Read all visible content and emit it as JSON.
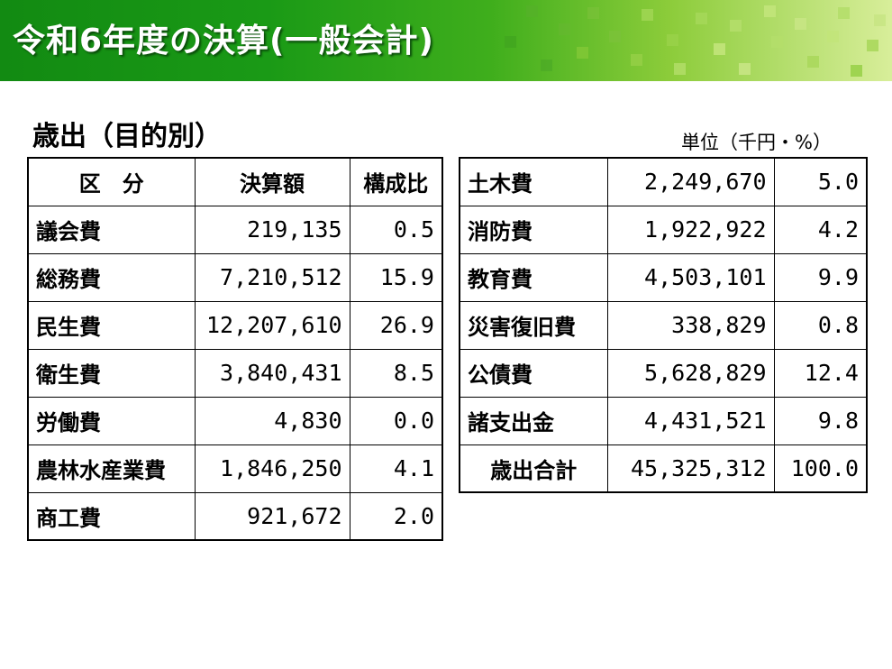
{
  "header": {
    "title": "令和6年度の決算(一般会計)"
  },
  "subtitle": "歳出（目的別）",
  "unit_label": "単位（千円・%）",
  "colors": {
    "banner_dark": "#128a12",
    "banner_light": "#d8ee9a",
    "squares": "#7cc23a"
  },
  "left_table": {
    "headers": [
      "区　分",
      "決算額",
      "構成比"
    ],
    "rows": [
      {
        "category": "議会費",
        "amount": "219,135",
        "ratio": "0.5"
      },
      {
        "category": "総務費",
        "amount": "7,210,512",
        "ratio": "15.9"
      },
      {
        "category": "民生費",
        "amount": "12,207,610",
        "ratio": "26.9"
      },
      {
        "category": "衛生費",
        "amount": "3,840,431",
        "ratio": "8.5"
      },
      {
        "category": "労働費",
        "amount": "4,830",
        "ratio": "0.0"
      },
      {
        "category": "農林水産業費",
        "amount": "1,846,250",
        "ratio": "4.1"
      },
      {
        "category": "商工費",
        "amount": "921,672",
        "ratio": "2.0"
      }
    ]
  },
  "right_table": {
    "rows": [
      {
        "category": "土木費",
        "amount": "2,249,670",
        "ratio": "5.0"
      },
      {
        "category": "消防費",
        "amount": "1,922,922",
        "ratio": "4.2"
      },
      {
        "category": "教育費",
        "amount": "4,503,101",
        "ratio": "9.9"
      },
      {
        "category": "災害復旧費",
        "amount": "338,829",
        "ratio": "0.8"
      },
      {
        "category": "公債費",
        "amount": "5,628,829",
        "ratio": "12.4"
      },
      {
        "category": "諸支出金",
        "amount": "4,431,521",
        "ratio": "9.8"
      }
    ],
    "total": {
      "category": "歳出合計",
      "amount": "45,325,312",
      "ratio": "100.0"
    }
  }
}
